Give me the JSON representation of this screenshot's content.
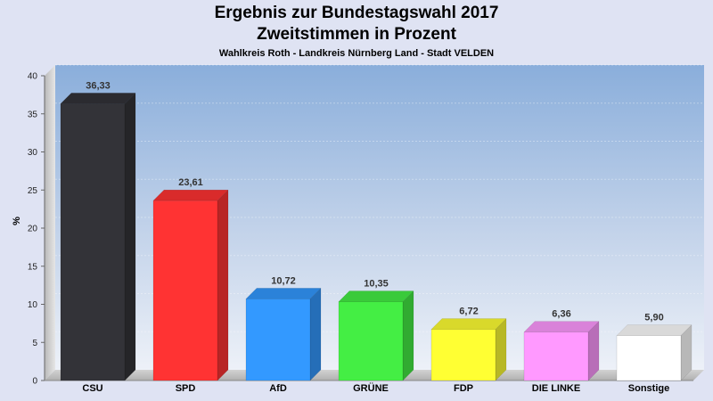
{
  "chart_data": {
    "type": "bar",
    "title": "Ergebnis zur Bundestagswahl 2017",
    "subtitle": "Zweitstimmen in Prozent",
    "caption": "Wahlkreis Roth - Landkreis Nürnberg Land - Stadt VELDEN",
    "ylabel": "%",
    "xlabel": "",
    "ylim": [
      0,
      40
    ],
    "yticks": [
      0,
      5,
      10,
      15,
      20,
      25,
      30,
      35,
      40
    ],
    "grid": true,
    "categories": [
      "CSU",
      "SPD",
      "AfD",
      "GRÜNE",
      "FDP",
      "DIE LINKE",
      "Sonstige"
    ],
    "values": [
      36.33,
      23.61,
      10.72,
      10.35,
      6.72,
      6.36,
      5.9
    ],
    "value_labels": [
      "36,33",
      "23,61",
      "10,72",
      "10,35",
      "6,72",
      "6,36",
      "5,90"
    ],
    "colors": [
      "#333338",
      "#ff3333",
      "#3399ff",
      "#44ee44",
      "#ffff33",
      "#ff99ff",
      "#ffffff"
    ]
  }
}
